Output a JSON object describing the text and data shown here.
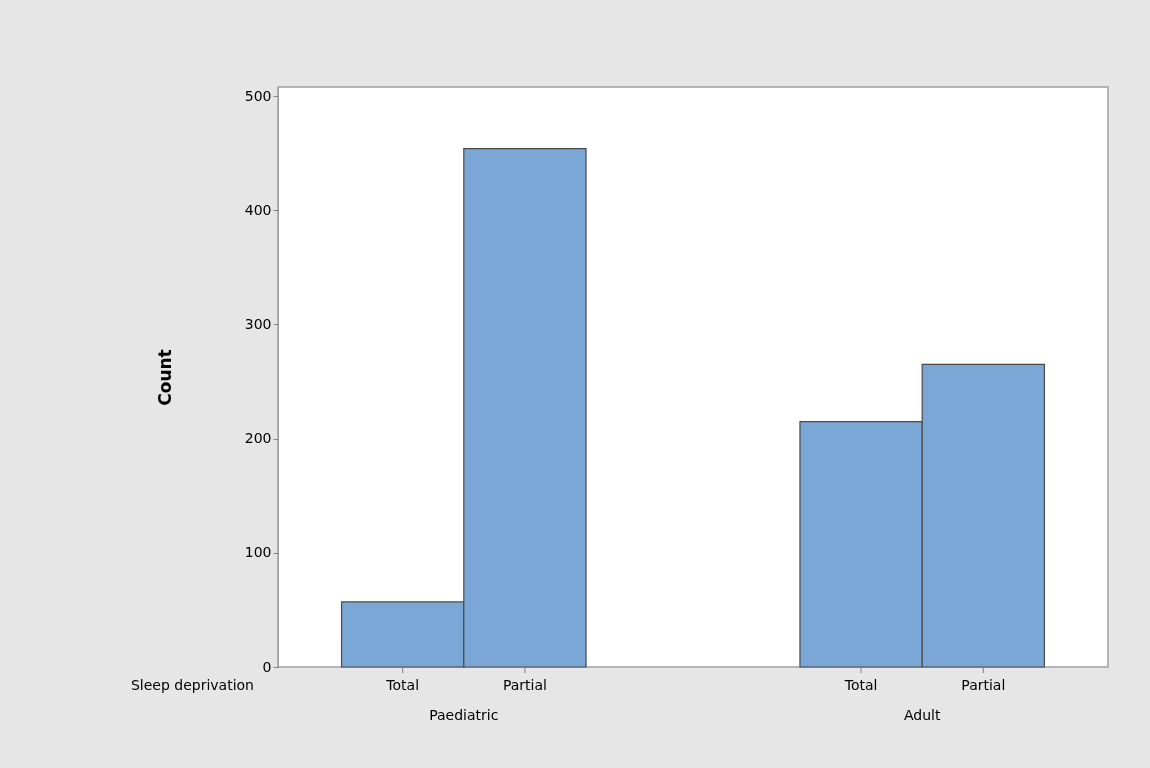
{
  "chart_data": {
    "type": "bar",
    "categories": [
      "Total",
      "Partial",
      "Total",
      "Partial"
    ],
    "values": [
      57,
      454,
      215,
      265
    ],
    "color": "#7ba7d7",
    "xlabel": "Sleep deprivation",
    "ylabel": "Count",
    "ylim": [
      0,
      508
    ],
    "yticks": [
      0,
      100,
      200,
      300,
      400,
      500
    ],
    "grid": false,
    "annotations": [
      "Paediatric",
      "Adult"
    ]
  }
}
